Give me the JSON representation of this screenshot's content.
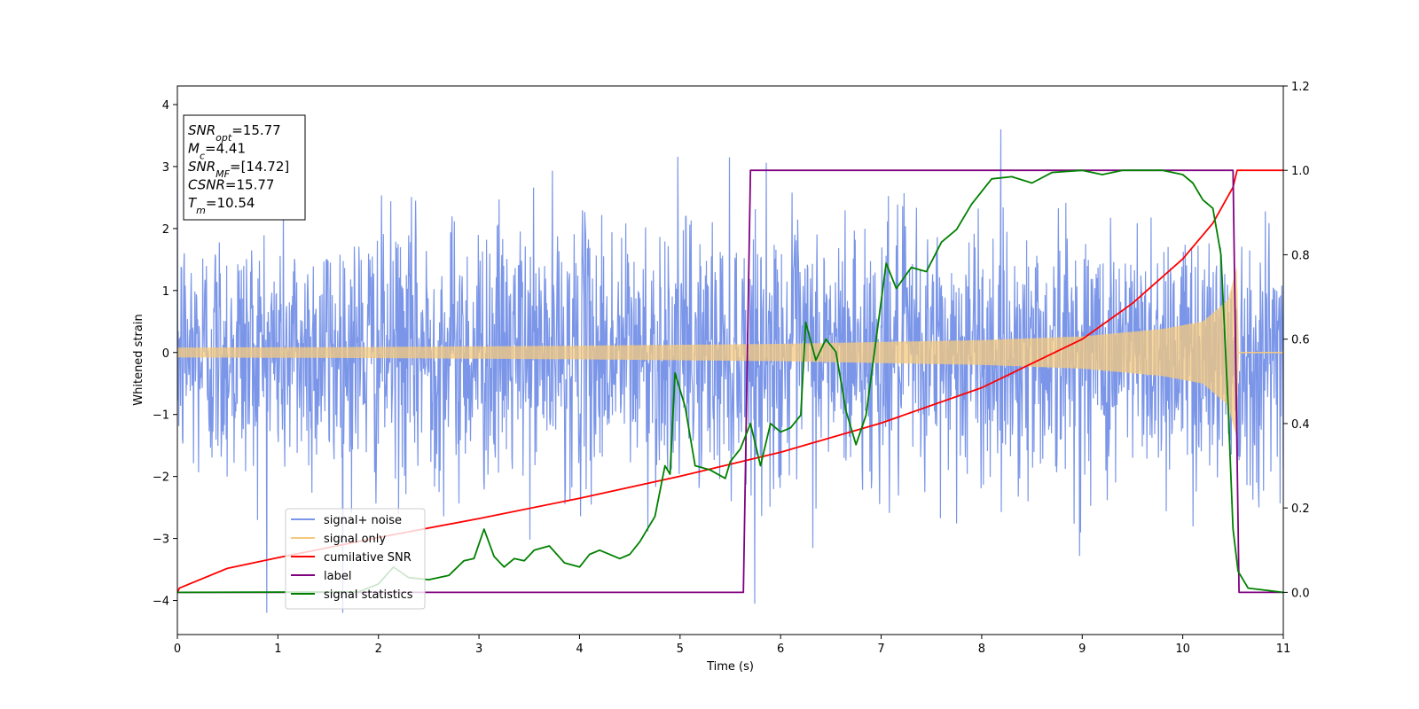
{
  "chart_data": {
    "type": "line",
    "title": "",
    "xlabel": "Time (s)",
    "ylabel": "Whitened strain",
    "xlim": [
      0,
      11
    ],
    "ylim_left": [
      -4.55,
      4.3
    ],
    "ylim_right": [
      -0.1,
      1.2
    ],
    "x_ticks": [
      0,
      1,
      2,
      3,
      4,
      5,
      6,
      7,
      8,
      9,
      10,
      11
    ],
    "y_left_ticks": [
      -4,
      -3,
      -2,
      -1,
      0,
      1,
      2,
      3,
      4
    ],
    "y_right_ticks": [
      0.0,
      0.2,
      0.4,
      0.6,
      0.8,
      1.0,
      1.2
    ],
    "grid": false,
    "legend_position": "lower-left",
    "series": [
      {
        "name": "signal+ noise",
        "color": "#7b96e8",
        "axis": "left",
        "kind": "noise_band",
        "approx_std": 1.05,
        "approx_range": [
          -4.2,
          3.9
        ]
      },
      {
        "name": "signal only",
        "color": "#f5c97e",
        "axis": "left",
        "kind": "chirp_envelope",
        "merger_time": 10.54,
        "envelope": [
          [
            0,
            0.08
          ],
          [
            2,
            0.09
          ],
          [
            4,
            0.11
          ],
          [
            6,
            0.14
          ],
          [
            8,
            0.2
          ],
          [
            9,
            0.26
          ],
          [
            9.8,
            0.38
          ],
          [
            10.2,
            0.5
          ],
          [
            10.45,
            0.85
          ],
          [
            10.54,
            1.4
          ],
          [
            10.56,
            0.0
          ],
          [
            11,
            0.0
          ]
        ]
      },
      {
        "name": "cumilative SNR",
        "color": "#ff0000",
        "axis": "right",
        "points": [
          [
            0,
            0.0
          ],
          [
            0.02,
            0.01
          ],
          [
            0.5,
            0.057
          ],
          [
            1,
            0.082
          ],
          [
            2,
            0.13
          ],
          [
            3,
            0.175
          ],
          [
            4,
            0.223
          ],
          [
            5,
            0.275
          ],
          [
            6,
            0.332
          ],
          [
            7,
            0.401
          ],
          [
            8,
            0.485
          ],
          [
            9,
            0.6
          ],
          [
            9.5,
            0.685
          ],
          [
            10,
            0.79
          ],
          [
            10.3,
            0.875
          ],
          [
            10.5,
            0.96
          ],
          [
            10.54,
            1.0
          ],
          [
            11,
            1.0
          ]
        ]
      },
      {
        "name": "label",
        "color": "#800080",
        "axis": "right",
        "points": [
          [
            0,
            0.0
          ],
          [
            5.63,
            0.0
          ],
          [
            5.7,
            1.0
          ],
          [
            10.5,
            1.0
          ],
          [
            10.56,
            0.0
          ],
          [
            11,
            0.0
          ]
        ]
      },
      {
        "name": "signal statistics",
        "color": "#008000",
        "axis": "right",
        "points": [
          [
            0,
            0.0
          ],
          [
            1.8,
            0.001
          ],
          [
            2.0,
            0.02
          ],
          [
            2.15,
            0.06
          ],
          [
            2.3,
            0.035
          ],
          [
            2.5,
            0.03
          ],
          [
            2.7,
            0.04
          ],
          [
            2.85,
            0.075
          ],
          [
            2.95,
            0.08
          ],
          [
            3.05,
            0.15
          ],
          [
            3.15,
            0.085
          ],
          [
            3.25,
            0.06
          ],
          [
            3.35,
            0.08
          ],
          [
            3.45,
            0.075
          ],
          [
            3.55,
            0.1
          ],
          [
            3.7,
            0.11
          ],
          [
            3.85,
            0.07
          ],
          [
            4.0,
            0.06
          ],
          [
            4.1,
            0.09
          ],
          [
            4.2,
            0.1
          ],
          [
            4.4,
            0.08
          ],
          [
            4.5,
            0.09
          ],
          [
            4.6,
            0.12
          ],
          [
            4.75,
            0.18
          ],
          [
            4.85,
            0.3
          ],
          [
            4.9,
            0.28
          ],
          [
            4.95,
            0.52
          ],
          [
            5.05,
            0.44
          ],
          [
            5.15,
            0.3
          ],
          [
            5.3,
            0.29
          ],
          [
            5.45,
            0.27
          ],
          [
            5.5,
            0.31
          ],
          [
            5.6,
            0.34
          ],
          [
            5.7,
            0.4
          ],
          [
            5.8,
            0.3
          ],
          [
            5.9,
            0.4
          ],
          [
            6.0,
            0.38
          ],
          [
            6.1,
            0.39
          ],
          [
            6.2,
            0.42
          ],
          [
            6.25,
            0.64
          ],
          [
            6.35,
            0.55
          ],
          [
            6.45,
            0.6
          ],
          [
            6.55,
            0.57
          ],
          [
            6.65,
            0.43
          ],
          [
            6.75,
            0.35
          ],
          [
            6.85,
            0.42
          ],
          [
            6.95,
            0.6
          ],
          [
            7.05,
            0.78
          ],
          [
            7.15,
            0.72
          ],
          [
            7.3,
            0.77
          ],
          [
            7.45,
            0.76
          ],
          [
            7.6,
            0.83
          ],
          [
            7.75,
            0.86
          ],
          [
            7.9,
            0.92
          ],
          [
            8.1,
            0.98
          ],
          [
            8.3,
            0.985
          ],
          [
            8.5,
            0.97
          ],
          [
            8.7,
            0.995
          ],
          [
            9.0,
            1.0
          ],
          [
            9.2,
            0.99
          ],
          [
            9.4,
            1.0
          ],
          [
            9.6,
            1.0
          ],
          [
            9.8,
            1.0
          ],
          [
            10.0,
            0.99
          ],
          [
            10.1,
            0.97
          ],
          [
            10.2,
            0.93
          ],
          [
            10.3,
            0.91
          ],
          [
            10.38,
            0.8
          ],
          [
            10.45,
            0.45
          ],
          [
            10.5,
            0.15
          ],
          [
            10.55,
            0.05
          ],
          [
            10.65,
            0.01
          ],
          [
            11,
            0.0
          ]
        ]
      }
    ],
    "annotation": [
      {
        "base": "SNR",
        "sub": "opt",
        "value": "=15.77"
      },
      {
        "base": "M",
        "sub": "c",
        "value": "=4.41"
      },
      {
        "base": "SNR",
        "sub": "MF",
        "value": "=[14.72]"
      },
      {
        "base": "CSNR",
        "sub": "",
        "value": "=15.77"
      },
      {
        "base": "T",
        "sub": "m",
        "value": "=10.54"
      }
    ]
  }
}
